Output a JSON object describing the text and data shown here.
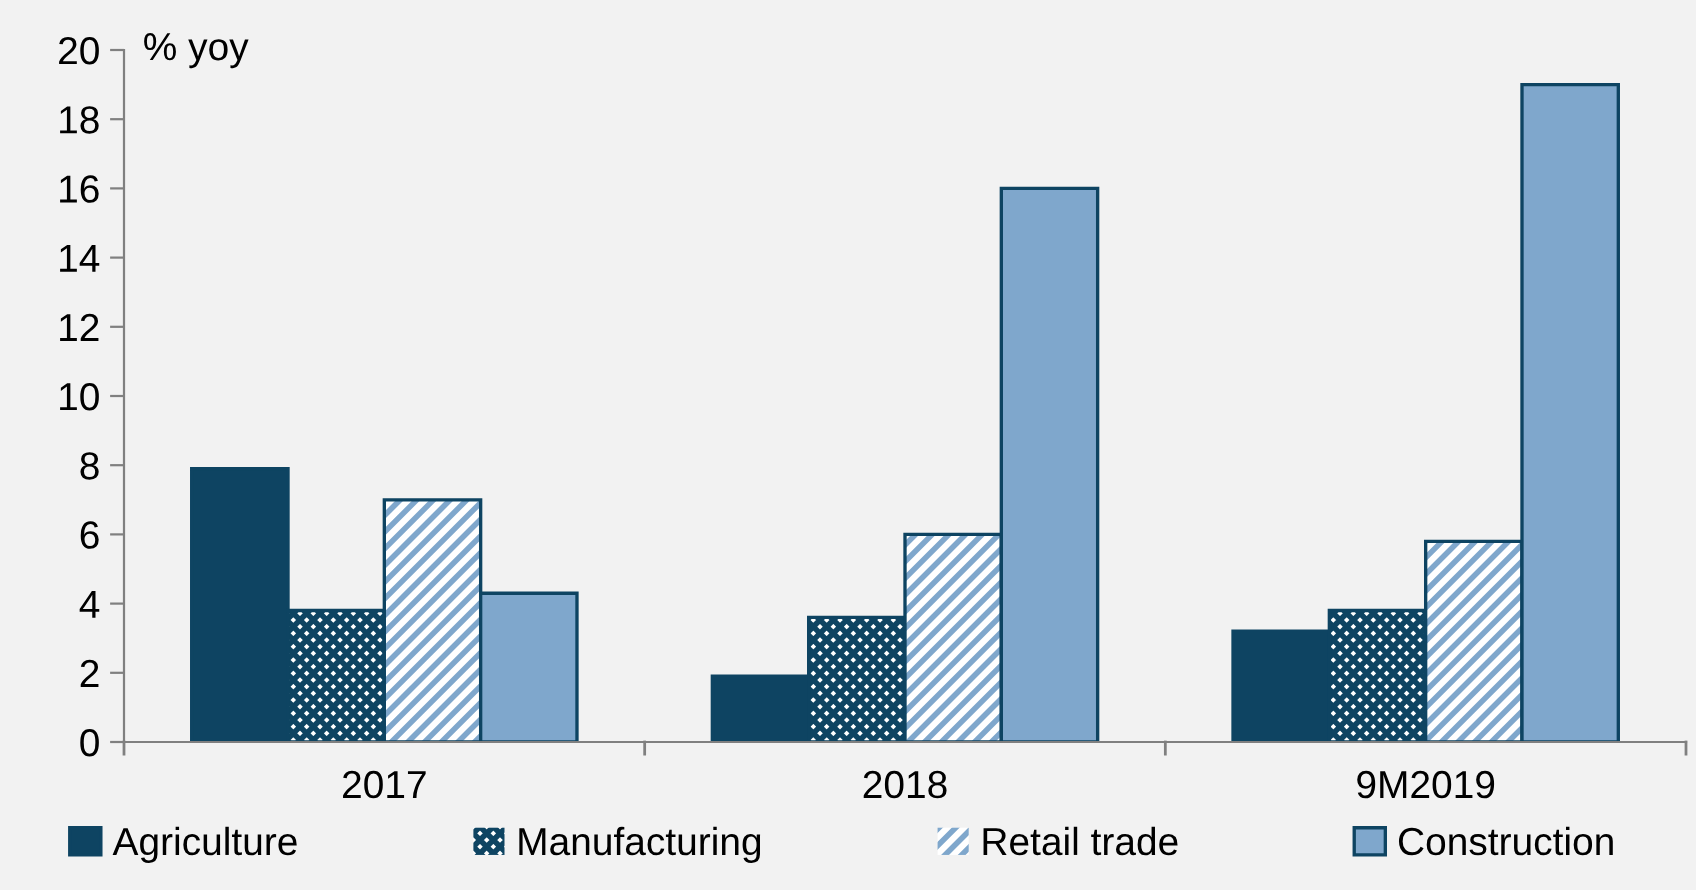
{
  "chart_data": {
    "type": "bar",
    "ylabel": "% yoy",
    "categories": [
      "2017",
      "2018",
      "9M2019"
    ],
    "series": [
      {
        "name": "Agriculture",
        "color": "#0e4462",
        "values": [
          7.9,
          1.9,
          3.2
        ]
      },
      {
        "name": "Manufacturing",
        "color": "#0e4462",
        "values": [
          3.8,
          3.6,
          3.8
        ]
      },
      {
        "name": "Retail trade",
        "color": "#7fa7cc",
        "values": [
          7.0,
          6.0,
          5.8
        ]
      },
      {
        "name": "Construction",
        "color": "#7fa7cc",
        "values": [
          4.3,
          16.0,
          19.0
        ]
      }
    ],
    "ylim": [
      0,
      20
    ],
    "yticks": [
      0,
      2,
      4,
      6,
      8,
      10,
      12,
      14,
      16,
      18,
      20
    ],
    "grid": false,
    "legend": "bottom"
  }
}
